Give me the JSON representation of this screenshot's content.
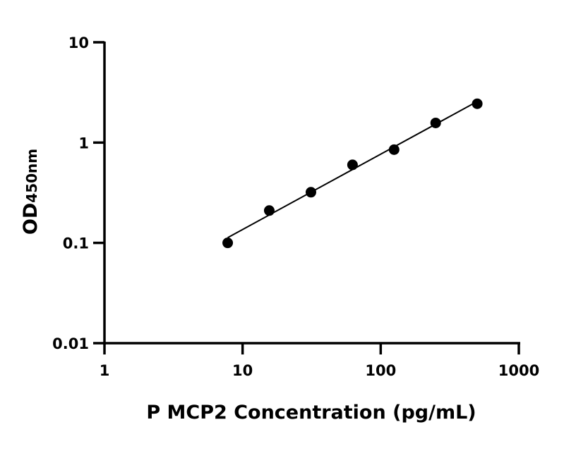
{
  "chart_data": {
    "type": "scatter",
    "xlabel": "P MCP2 Concentration (pg/mL)",
    "ylabel_main": "OD",
    "ylabel_sub": "450nm",
    "x_scale": "log",
    "y_scale": "log",
    "xlim": [
      1,
      1000
    ],
    "ylim": [
      0.01,
      10
    ],
    "x_ticks": [
      "1",
      "10",
      "100",
      "1000"
    ],
    "y_ticks": [
      "0.01",
      "0.1",
      "1",
      "10"
    ],
    "grid": false,
    "legend": "none",
    "fit_line": true,
    "point_color": "#000000",
    "series": [
      {
        "x": [
          7.8,
          15.6,
          31.25,
          62.5,
          125,
          250,
          500
        ],
        "y": [
          0.1,
          0.21,
          0.32,
          0.6,
          0.85,
          1.57,
          2.44
        ]
      }
    ]
  }
}
